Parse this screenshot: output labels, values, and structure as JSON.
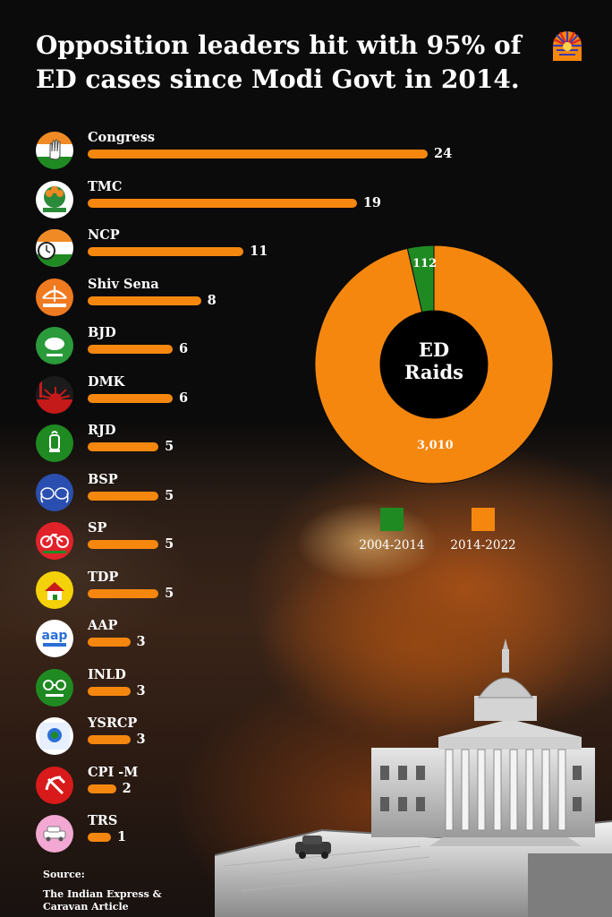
{
  "title": "Opposition leaders hit with 95% of ED cases since Modi Govt in 2014.",
  "brand_logo_icon": "sun-rays-icon",
  "colors": {
    "bar": "#f5870f",
    "green": "#1f8a22",
    "orange": "#f5870f",
    "background": "#0b0b0b"
  },
  "chart_data": [
    {
      "type": "bar",
      "orientation": "horizontal",
      "title": "",
      "xlabel": "",
      "ylabel": "",
      "categories": [
        "Congress",
        "TMC",
        "NCP",
        "Shiv Sena",
        "BJD",
        "DMK",
        "RJD",
        "BSP",
        "SP",
        "TDP",
        "AAP",
        "INLD",
        "YSRCP",
        "CPI -M",
        "TRS"
      ],
      "values": [
        24,
        19,
        11,
        8,
        6,
        6,
        5,
        5,
        5,
        5,
        3,
        3,
        3,
        2,
        1
      ],
      "xlim": [
        0,
        24
      ],
      "grid": false,
      "logos": [
        "congress-hand-icon",
        "tmc-flower-icon",
        "ncp-clock-icon",
        "shiv-sena-bow-arrow-icon",
        "bjd-conch-icon",
        "dmk-rising-sun-icon",
        "rjd-lantern-icon",
        "bsp-elephant-icon",
        "sp-bicycle-icon",
        "tdp-bicycle-house-icon",
        "aap-broom-icon",
        "inld-spectacles-icon",
        "ysrcp-fan-icon",
        "cpi-m-hammer-sickle-icon",
        "trs-car-icon"
      ]
    },
    {
      "type": "pie",
      "donut": true,
      "center_label": [
        "ED",
        "Raids"
      ],
      "categories": [
        "2004-2014",
        "2014-2022"
      ],
      "values": [
        112,
        3010
      ],
      "value_labels": [
        "112",
        "3,010"
      ],
      "colors": [
        "#1f8a22",
        "#f5870f"
      ],
      "legend": "bottom"
    }
  ],
  "source": {
    "heading": "Source:",
    "text": "The Indian Express & Caravan Article"
  }
}
